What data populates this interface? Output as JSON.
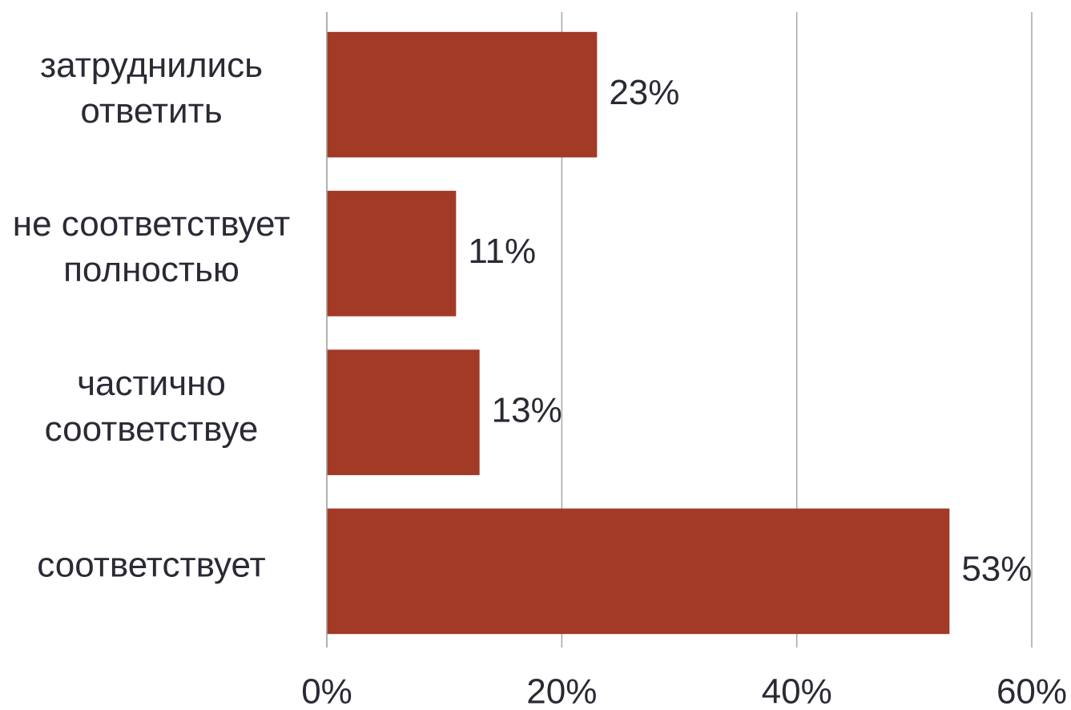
{
  "chart_data": {
    "type": "bar",
    "orientation": "horizontal",
    "categories": [
      "затруднились ответить",
      "не соответствует полностью",
      "частично соответствуе",
      "соответствует"
    ],
    "values": [
      23,
      11,
      13,
      53
    ],
    "value_labels": [
      "23%",
      "11%",
      "13%",
      "53%"
    ],
    "color": "#a33a26",
    "xlim": [
      0,
      60
    ],
    "xticks": [
      {
        "value": 0,
        "label": "0%"
      },
      {
        "value": 20,
        "label": "20%"
      },
      {
        "value": 40,
        "label": "40%"
      },
      {
        "value": 60,
        "label": "60%"
      }
    ],
    "grid": true
  }
}
